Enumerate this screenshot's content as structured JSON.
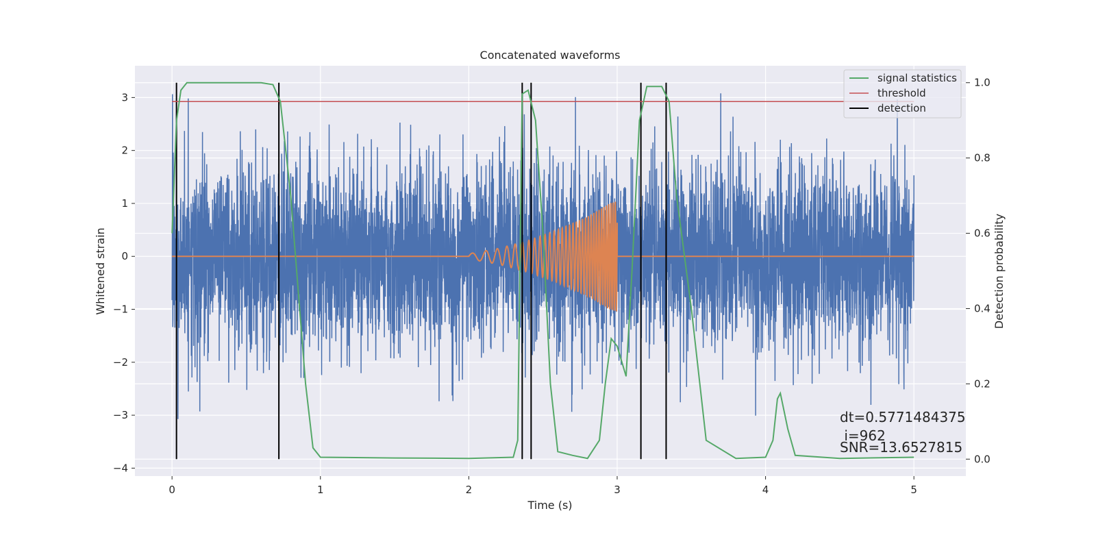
{
  "chart_data": {
    "type": "line",
    "title": "Concatenated waveforms",
    "xlabel": "Time (s)",
    "ylabel": "Whitened strain",
    "y2label": "Detection probability",
    "xlim": [
      -0.25,
      5.35
    ],
    "ylim": [
      -4.15,
      3.6
    ],
    "y2lim": [
      -0.045,
      1.045
    ],
    "xticks": [
      0,
      1,
      2,
      3,
      4,
      5
    ],
    "xtick_labels": [
      "0",
      "1",
      "2",
      "3",
      "4",
      "5"
    ],
    "yticks": [
      -4,
      -3,
      -2,
      -1,
      0,
      1,
      2,
      3
    ],
    "ytick_labels": [
      "−4",
      "−3",
      "−2",
      "−1",
      "0",
      "1",
      "2",
      "3"
    ],
    "y2ticks": [
      0.0,
      0.2,
      0.4,
      0.6,
      0.8,
      1.0
    ],
    "y2tick_labels": [
      "0.0",
      "0.2",
      "0.4",
      "0.6",
      "0.8",
      "1.0"
    ],
    "grid": true,
    "legend_position": "top-right",
    "colors": {
      "background": "#eaeaf2",
      "grid": "#ffffff",
      "strain": "#4c72b0",
      "template": "#dd8452",
      "signal_statistics": "#55a868",
      "threshold": "#c44e52",
      "detection": "#000000"
    },
    "series": [
      {
        "name": "whitened strain",
        "axis": "left",
        "description": "noise",
        "x_range": [
          0,
          5
        ],
        "std": 0.85,
        "min": -3.75,
        "max": 3.25
      },
      {
        "name": "injected waveform",
        "axis": "left",
        "x": [
          0,
          2.0,
          2.2,
          2.4,
          2.6,
          2.8,
          2.95,
          3.0,
          3.0,
          5.0
        ],
        "envelope": [
          0,
          0.05,
          0.15,
          0.3,
          0.5,
          0.75,
          1.0,
          1.05,
          0,
          0
        ]
      },
      {
        "name": "signal statistics",
        "axis": "right",
        "x": [
          0.0,
          0.03,
          0.06,
          0.1,
          0.3,
          0.6,
          0.68,
          0.73,
          0.8,
          0.9,
          0.95,
          1.0,
          1.5,
          2.0,
          2.3,
          2.33,
          2.36,
          2.4,
          2.45,
          2.5,
          2.55,
          2.6,
          2.7,
          2.8,
          2.88,
          2.92,
          2.96,
          3.0,
          3.06,
          3.1,
          3.15,
          3.2,
          3.3,
          3.35,
          3.4,
          3.5,
          3.6,
          3.8,
          4.0,
          4.05,
          4.08,
          4.1,
          4.15,
          4.2,
          4.5,
          5.0
        ],
        "y": [
          0.6,
          0.9,
          0.98,
          1.0,
          1.0,
          1.0,
          0.995,
          0.95,
          0.7,
          0.2,
          0.03,
          0.005,
          0.003,
          0.002,
          0.005,
          0.05,
          0.97,
          0.98,
          0.9,
          0.6,
          0.2,
          0.02,
          0.01,
          0.002,
          0.05,
          0.2,
          0.32,
          0.3,
          0.22,
          0.5,
          0.9,
          0.99,
          0.99,
          0.95,
          0.7,
          0.4,
          0.05,
          0.002,
          0.005,
          0.05,
          0.16,
          0.175,
          0.08,
          0.01,
          0.002,
          0.005
        ]
      },
      {
        "name": "threshold",
        "axis": "right",
        "x": [
          0,
          5
        ],
        "y": [
          0.95,
          0.95
        ]
      }
    ],
    "detections": [
      0.03,
      0.72,
      2.36,
      2.42,
      3.16,
      3.33
    ],
    "legend": [
      "signal statistics",
      "threshold",
      "detection"
    ],
    "annotations": [
      "dt=0.5771484375",
      " i=962",
      "SNR=13.6527815"
    ]
  }
}
